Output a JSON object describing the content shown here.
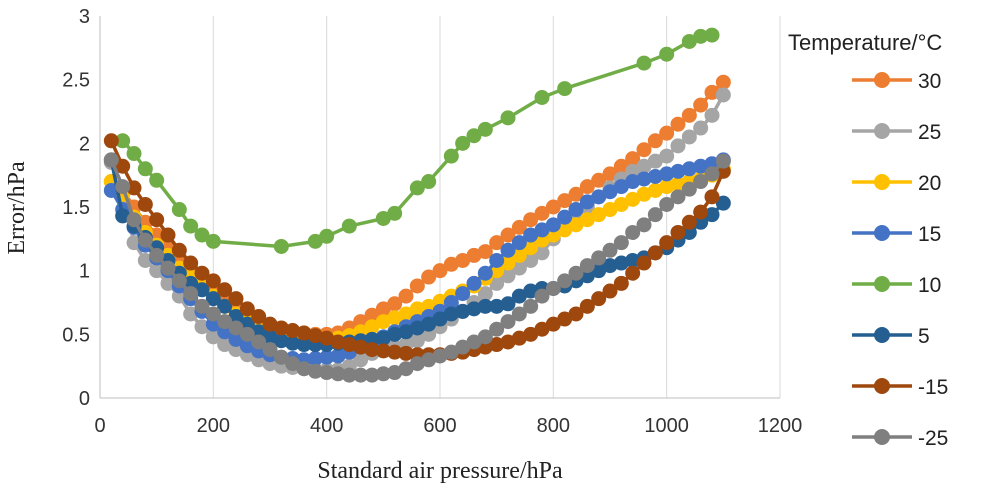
{
  "chart_data": {
    "type": "line",
    "xlabel": "Standard air pressure/hPa",
    "ylabel": "Error/hPa",
    "xlim": [
      0,
      1200
    ],
    "ylim": [
      0,
      3
    ],
    "xticks": [
      "0",
      "200",
      "400",
      "600",
      "800",
      "1000",
      "1200"
    ],
    "yticks": [
      "0",
      "0.5",
      "1",
      "1.5",
      "2",
      "2.5",
      "3"
    ],
    "grid": "vertical",
    "legend": {
      "title": "Temperature/°C",
      "placement": "right"
    },
    "series": [
      {
        "name": "30",
        "color": "#ED7D31",
        "x": [
          20,
          40,
          60,
          80,
          100,
          120,
          140,
          160,
          180,
          200,
          220,
          240,
          260,
          280,
          300,
          320,
          340,
          360,
          380,
          400,
          420,
          440,
          460,
          480,
          500,
          520,
          540,
          560,
          580,
          600,
          620,
          640,
          660,
          680,
          700,
          720,
          740,
          760,
          780,
          800,
          820,
          840,
          860,
          880,
          900,
          920,
          940,
          960,
          980,
          1000,
          1020,
          1040,
          1060,
          1080,
          1100
        ],
        "y": [
          1.7,
          1.63,
          1.5,
          1.38,
          1.28,
          1.2,
          1.1,
          1.02,
          0.92,
          0.84,
          0.75,
          0.68,
          0.62,
          0.58,
          0.55,
          0.53,
          0.52,
          0.51,
          0.5,
          0.5,
          0.51,
          0.55,
          0.6,
          0.65,
          0.7,
          0.74,
          0.8,
          0.88,
          0.95,
          1.0,
          1.05,
          1.08,
          1.12,
          1.15,
          1.22,
          1.28,
          1.34,
          1.4,
          1.45,
          1.5,
          1.55,
          1.6,
          1.66,
          1.71,
          1.76,
          1.82,
          1.88,
          1.95,
          2.02,
          2.08,
          2.15,
          2.22,
          2.3,
          2.4,
          2.48
        ]
      },
      {
        "name": "25",
        "color": "#A5A5A5",
        "x": [
          20,
          40,
          60,
          80,
          100,
          120,
          140,
          160,
          180,
          200,
          220,
          240,
          260,
          280,
          300,
          320,
          340,
          360,
          380,
          400,
          420,
          440,
          460,
          480,
          500,
          520,
          540,
          560,
          580,
          600,
          620,
          640,
          660,
          680,
          700,
          720,
          740,
          760,
          780,
          800,
          820,
          840,
          860,
          880,
          900,
          920,
          940,
          960,
          980,
          1000,
          1020,
          1040,
          1060,
          1080,
          1100
        ],
        "y": [
          1.85,
          1.6,
          1.22,
          1.08,
          1.0,
          0.9,
          0.8,
          0.66,
          0.56,
          0.48,
          0.42,
          0.38,
          0.34,
          0.3,
          0.27,
          0.25,
          0.24,
          0.23,
          0.22,
          0.22,
          0.22,
          0.25,
          0.3,
          0.35,
          0.38,
          0.4,
          0.42,
          0.45,
          0.5,
          0.56,
          0.62,
          0.68,
          0.75,
          0.82,
          0.9,
          0.96,
          1.02,
          1.08,
          1.14,
          1.25,
          1.35,
          1.42,
          1.5,
          1.58,
          1.65,
          1.72,
          1.78,
          1.82,
          1.86,
          1.9,
          1.98,
          2.05,
          2.12,
          2.22,
          2.38
        ]
      },
      {
        "name": "20",
        "color": "#FFC000",
        "x": [
          20,
          40,
          60,
          80,
          100,
          120,
          140,
          160,
          180,
          200,
          220,
          240,
          260,
          280,
          300,
          320,
          340,
          360,
          380,
          400,
          420,
          440,
          460,
          480,
          500,
          520,
          540,
          560,
          580,
          600,
          620,
          640,
          660,
          680,
          700,
          720,
          740,
          760,
          780,
          800,
          820,
          840,
          860,
          880,
          900,
          920,
          940,
          960,
          980,
          1000,
          1020,
          1040,
          1060,
          1080,
          1100
        ],
        "y": [
          1.7,
          1.6,
          1.42,
          1.3,
          1.2,
          1.12,
          1.02,
          0.95,
          0.88,
          0.8,
          0.72,
          0.66,
          0.6,
          0.56,
          0.53,
          0.51,
          0.49,
          0.48,
          0.47,
          0.47,
          0.47,
          0.49,
          0.52,
          0.56,
          0.6,
          0.63,
          0.66,
          0.7,
          0.72,
          0.76,
          0.8,
          0.84,
          0.88,
          0.94,
          1.0,
          1.06,
          1.12,
          1.18,
          1.24,
          1.28,
          1.32,
          1.36,
          1.4,
          1.44,
          1.48,
          1.52,
          1.56,
          1.6,
          1.63,
          1.66,
          1.68,
          1.7,
          1.72,
          1.75,
          1.8
        ]
      },
      {
        "name": "15",
        "color": "#4472C4",
        "x": [
          20,
          40,
          60,
          80,
          100,
          120,
          140,
          160,
          180,
          200,
          220,
          240,
          260,
          280,
          300,
          320,
          340,
          360,
          380,
          400,
          420,
          440,
          460,
          480,
          500,
          520,
          540,
          560,
          580,
          600,
          620,
          640,
          660,
          680,
          700,
          720,
          740,
          760,
          780,
          800,
          820,
          840,
          860,
          880,
          900,
          920,
          940,
          960,
          980,
          1000,
          1020,
          1040,
          1060,
          1080,
          1100
        ],
        "y": [
          1.63,
          1.48,
          1.34,
          1.2,
          1.1,
          1.0,
          0.88,
          0.78,
          0.68,
          0.58,
          0.52,
          0.46,
          0.41,
          0.37,
          0.34,
          0.32,
          0.31,
          0.3,
          0.31,
          0.32,
          0.33,
          0.36,
          0.4,
          0.44,
          0.48,
          0.52,
          0.56,
          0.6,
          0.64,
          0.68,
          0.75,
          0.82,
          0.9,
          0.98,
          1.08,
          1.16,
          1.22,
          1.28,
          1.32,
          1.36,
          1.42,
          1.48,
          1.54,
          1.58,
          1.62,
          1.66,
          1.7,
          1.72,
          1.74,
          1.76,
          1.78,
          1.8,
          1.82,
          1.84,
          1.87
        ]
      },
      {
        "name": "10",
        "color": "#70AD47",
        "x": [
          40,
          60,
          80,
          100,
          140,
          160,
          180,
          200,
          320,
          380,
          400,
          440,
          500,
          520,
          560,
          580,
          620,
          640,
          660,
          680,
          720,
          780,
          820,
          960,
          1000,
          1040,
          1060,
          1080
        ],
        "y": [
          2.02,
          1.92,
          1.8,
          1.71,
          1.48,
          1.35,
          1.28,
          1.23,
          1.19,
          1.23,
          1.27,
          1.35,
          1.41,
          1.45,
          1.65,
          1.7,
          1.9,
          2.0,
          2.06,
          2.11,
          2.2,
          2.36,
          2.43,
          2.63,
          2.7,
          2.8,
          2.84,
          2.85
        ]
      },
      {
        "name": "5",
        "color": "#255E91",
        "x": [
          20,
          40,
          60,
          80,
          100,
          120,
          140,
          160,
          180,
          200,
          220,
          240,
          260,
          280,
          300,
          320,
          340,
          360,
          380,
          400,
          420,
          440,
          460,
          480,
          500,
          520,
          540,
          560,
          580,
          600,
          620,
          640,
          660,
          680,
          700,
          720,
          740,
          760,
          780,
          800,
          820,
          840,
          860,
          880,
          900,
          920,
          940,
          960,
          980,
          1000,
          1020,
          1040,
          1060,
          1080,
          1100
        ],
        "y": [
          1.87,
          1.43,
          1.35,
          1.26,
          1.18,
          1.08,
          0.98,
          0.9,
          0.85,
          0.78,
          0.72,
          0.64,
          0.58,
          0.52,
          0.48,
          0.45,
          0.43,
          0.42,
          0.42,
          0.42,
          0.43,
          0.44,
          0.45,
          0.46,
          0.47,
          0.5,
          0.52,
          0.55,
          0.58,
          0.62,
          0.66,
          0.68,
          0.7,
          0.72,
          0.72,
          0.74,
          0.8,
          0.84,
          0.86,
          0.86,
          0.88,
          0.92,
          0.96,
          1.0,
          1.04,
          1.06,
          1.08,
          1.1,
          1.14,
          1.18,
          1.24,
          1.3,
          1.38,
          1.44,
          1.53
        ]
      },
      {
        "name": "-15",
        "color": "#9E480E",
        "x": [
          20,
          40,
          60,
          80,
          100,
          120,
          140,
          160,
          180,
          200,
          220,
          240,
          260,
          280,
          300,
          320,
          340,
          360,
          380,
          400,
          420,
          440,
          460,
          480,
          500,
          520,
          540,
          560,
          580,
          600,
          620,
          640,
          660,
          680,
          700,
          720,
          740,
          760,
          780,
          800,
          820,
          840,
          860,
          880,
          900,
          920,
          940,
          960,
          980,
          1000,
          1020,
          1040,
          1060,
          1080,
          1100
        ],
        "y": [
          2.02,
          1.82,
          1.65,
          1.52,
          1.4,
          1.28,
          1.16,
          1.06,
          0.98,
          0.92,
          0.85,
          0.78,
          0.7,
          0.64,
          0.58,
          0.55,
          0.53,
          0.51,
          0.49,
          0.47,
          0.44,
          0.42,
          0.4,
          0.38,
          0.37,
          0.36,
          0.35,
          0.34,
          0.34,
          0.34,
          0.35,
          0.36,
          0.38,
          0.4,
          0.42,
          0.44,
          0.47,
          0.5,
          0.54,
          0.58,
          0.62,
          0.66,
          0.72,
          0.78,
          0.84,
          0.9,
          0.98,
          1.06,
          1.14,
          1.22,
          1.3,
          1.38,
          1.46,
          1.58,
          1.78
        ]
      },
      {
        "name": "-25",
        "color": "#7F7F7F",
        "x": [
          20,
          40,
          60,
          80,
          100,
          120,
          140,
          160,
          180,
          200,
          220,
          240,
          260,
          280,
          300,
          320,
          340,
          360,
          380,
          400,
          420,
          440,
          460,
          480,
          500,
          520,
          540,
          560,
          580,
          600,
          620,
          640,
          660,
          680,
          700,
          720,
          740,
          760,
          780,
          800,
          820,
          840,
          860,
          880,
          900,
          920,
          940,
          960,
          980,
          1000,
          1020,
          1040,
          1060,
          1080,
          1100
        ],
        "y": [
          1.87,
          1.66,
          1.4,
          1.24,
          1.12,
          1.02,
          0.92,
          0.82,
          0.72,
          0.66,
          0.6,
          0.55,
          0.5,
          0.44,
          0.38,
          0.32,
          0.27,
          0.23,
          0.21,
          0.2,
          0.19,
          0.18,
          0.18,
          0.18,
          0.19,
          0.2,
          0.23,
          0.27,
          0.3,
          0.33,
          0.36,
          0.4,
          0.44,
          0.48,
          0.54,
          0.6,
          0.66,
          0.72,
          0.8,
          0.86,
          0.92,
          0.98,
          1.04,
          1.1,
          1.16,
          1.22,
          1.3,
          1.36,
          1.44,
          1.52,
          1.58,
          1.64,
          1.7,
          1.76,
          1.86
        ]
      }
    ]
  }
}
